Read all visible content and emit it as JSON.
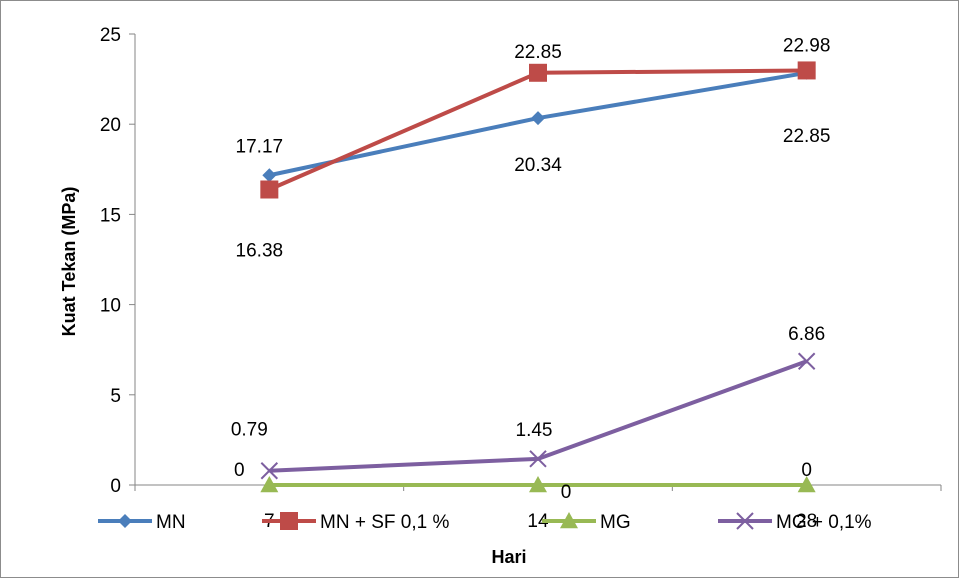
{
  "chart_data": {
    "type": "line",
    "title": "",
    "xlabel": "Hari",
    "ylabel": "Kuat Tekan  (MPa)",
    "categories": [
      "7",
      "14",
      "28"
    ],
    "ylim": [
      0,
      25
    ],
    "yticks": [
      "0",
      "5",
      "10",
      "15",
      "20",
      "25"
    ],
    "grid": false,
    "legend_position": "bottom",
    "series": [
      {
        "name": "MN",
        "values": [
          17.17,
          20.34,
          22.85
        ],
        "labels": [
          "17.17",
          "20.34",
          "22.85"
        ],
        "color": "#4a7ebb",
        "marker": "diamond"
      },
      {
        "name": "MN + SF 0,1 %",
        "values": [
          16.38,
          22.85,
          22.98
        ],
        "labels": [
          "16.38",
          "22.85",
          "22.98"
        ],
        "color": "#be4b48",
        "marker": "square"
      },
      {
        "name": "MG",
        "values": [
          0,
          0,
          0
        ],
        "labels": [
          "0",
          "0",
          "0"
        ],
        "color": "#98b954",
        "marker": "triangle"
      },
      {
        "name": "MG + 0,1%",
        "values": [
          0.79,
          1.45,
          6.86
        ],
        "labels": [
          "0.79",
          "1.45",
          "6.86"
        ],
        "color": "#7d5fa0",
        "marker": "x"
      }
    ]
  }
}
